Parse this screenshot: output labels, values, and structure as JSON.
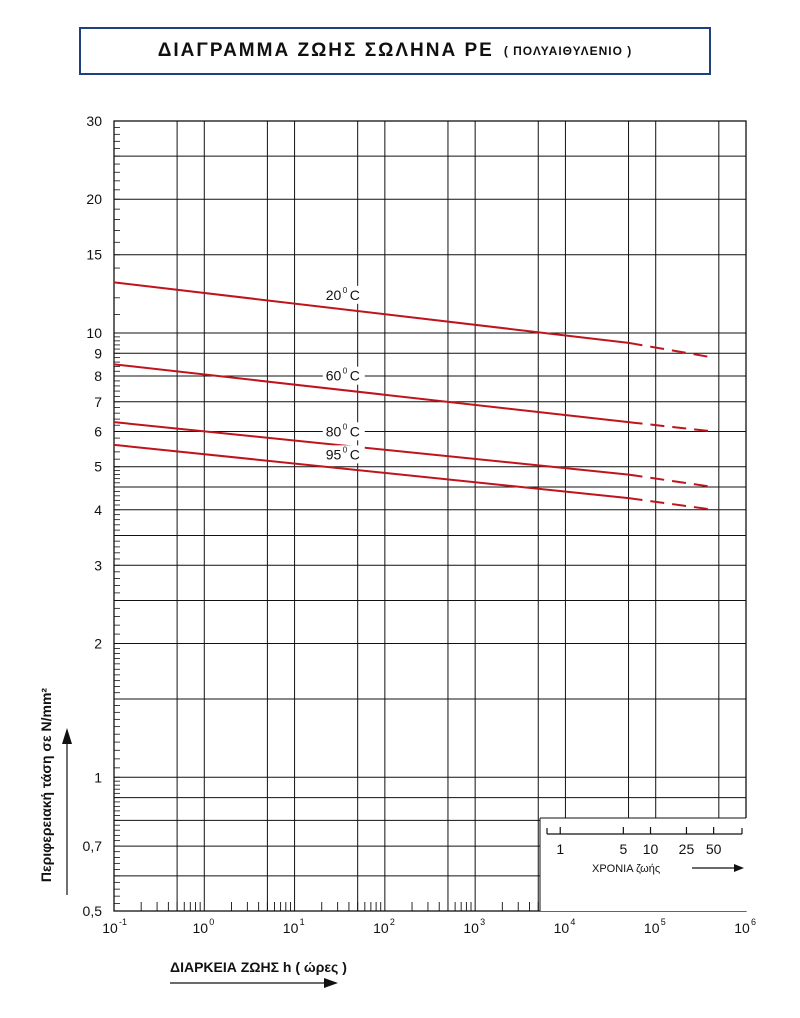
{
  "title": {
    "main": "ΔΙΑΓΡΑΜΜΑ ΖΩΗΣ ΣΩΛΗΝΑ PE",
    "sub": "( ΠΟΛΥΑΙΘΥΛΕΝΙΟ )"
  },
  "colors": {
    "series": "#c0141c",
    "grid": "#111111",
    "frame": "#1f3f7f"
  },
  "chart_data": {
    "type": "line",
    "scale": "log-log",
    "title": "ΔΙΑΓΡΑΜΜΑ ΖΩΗΣ ΣΩΛΗΝΑ PE ( ΠΟΛΥΑΙΘΥΛΕΝΙΟ )",
    "xlabel": "ΔΙΑΡΚΕΙΑ ΖΩΗΣ  h ( ώρες )",
    "ylabel": "Περιφερειακή τάση σε N/mm²",
    "xlim": [
      0.1,
      1000000
    ],
    "ylim": [
      0.5,
      30
    ],
    "x_ticks": [
      {
        "base": "10",
        "exp": "-1",
        "value": 0.1
      },
      {
        "base": "10",
        "exp": "0",
        "value": 1
      },
      {
        "base": "10",
        "exp": "1",
        "value": 10
      },
      {
        "base": "10",
        "exp": "2",
        "value": 100
      },
      {
        "base": "10",
        "exp": "3",
        "value": 1000
      },
      {
        "base": "10",
        "exp": "4",
        "value": 10000
      },
      {
        "base": "10",
        "exp": "5",
        "value": 100000
      },
      {
        "base": "10",
        "exp": "6",
        "value": 1000000
      }
    ],
    "y_ticks": [
      {
        "label": "0,5",
        "value": 0.5
      },
      {
        "label": "0,7",
        "value": 0.7
      },
      {
        "label": "1",
        "value": 1
      },
      {
        "label": "2",
        "value": 2
      },
      {
        "label": "3",
        "value": 3
      },
      {
        "label": "4",
        "value": 4
      },
      {
        "label": "5",
        "value": 5
      },
      {
        "label": "6",
        "value": 6
      },
      {
        "label": "7",
        "value": 7
      },
      {
        "label": "8",
        "value": 8
      },
      {
        "label": "9",
        "value": 9
      },
      {
        "label": "10",
        "value": 10
      },
      {
        "label": "15",
        "value": 15
      },
      {
        "label": "20",
        "value": 20
      },
      {
        "label": "30",
        "value": 30
      }
    ],
    "secondary_axis": {
      "label": "ΧΡΟΝΙΑ  ζωής",
      "ticks": [
        {
          "label": "1",
          "hours": 8760
        },
        {
          "label": "5",
          "hours": 43800
        },
        {
          "label": "10",
          "hours": 87600
        },
        {
          "label": "25",
          "hours": 219000
        },
        {
          "label": "50",
          "hours": 438000
        }
      ]
    },
    "series": [
      {
        "name": "20°C",
        "label": "20",
        "sup": "0",
        "unit": "C",
        "x": [
          0.1,
          50000
        ],
        "y": [
          13.0,
          9.5
        ],
        "extrapolated_to": [
          438000,
          8.8
        ],
        "label_at_x": 20
      },
      {
        "name": "60°C",
        "label": "60",
        "sup": "0",
        "unit": "C",
        "x": [
          0.1,
          50000
        ],
        "y": [
          8.5,
          6.3
        ],
        "extrapolated_to": [
          438000,
          6.0
        ],
        "label_at_x": 20
      },
      {
        "name": "80°C",
        "label": "80",
        "sup": "0",
        "unit": "C",
        "x": [
          0.1,
          50000
        ],
        "y": [
          6.3,
          4.8
        ],
        "extrapolated_to": [
          438000,
          4.5
        ],
        "label_at_x": 20
      },
      {
        "name": "95°C",
        "label": "95",
        "sup": "0",
        "unit": "C",
        "x": [
          0.1,
          50000
        ],
        "y": [
          5.6,
          4.25
        ],
        "extrapolated_to": [
          438000,
          4.0
        ],
        "label_at_x": 20
      }
    ]
  }
}
